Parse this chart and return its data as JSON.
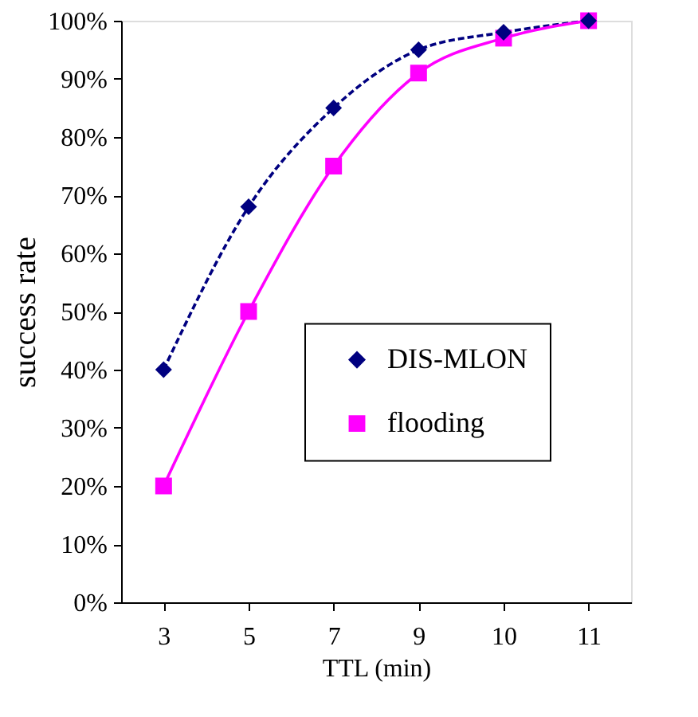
{
  "chart_data": {
    "type": "line",
    "xlabel": "TTL (min)",
    "ylabel": "success rate",
    "categories": [
      "3",
      "5",
      "7",
      "9",
      "10",
      "11"
    ],
    "series": [
      {
        "name": "DIS-MLON",
        "color": "#000080",
        "values": [
          40,
          68,
          85,
          95,
          98,
          100
        ],
        "marker": "diamond",
        "line_style": "dashed"
      },
      {
        "name": "flooding",
        "color": "#ff00ff",
        "values": [
          20,
          50,
          75,
          91,
          97,
          100
        ],
        "marker": "square",
        "line_style": "solid"
      }
    ],
    "ylim": [
      0,
      100
    ],
    "yticks": [
      {
        "value": 0,
        "label": "0%"
      },
      {
        "value": 10,
        "label": "10%"
      },
      {
        "value": 20,
        "label": "20%"
      },
      {
        "value": 30,
        "label": "30%"
      },
      {
        "value": 40,
        "label": "40%"
      },
      {
        "value": 50,
        "label": "50%"
      },
      {
        "value": 60,
        "label": "60%"
      },
      {
        "value": 70,
        "label": "70%"
      },
      {
        "value": 80,
        "label": "80%"
      },
      {
        "value": 90,
        "label": "90%"
      },
      {
        "value": 100,
        "label": "100%"
      }
    ],
    "grid": false,
    "legend": "right"
  }
}
